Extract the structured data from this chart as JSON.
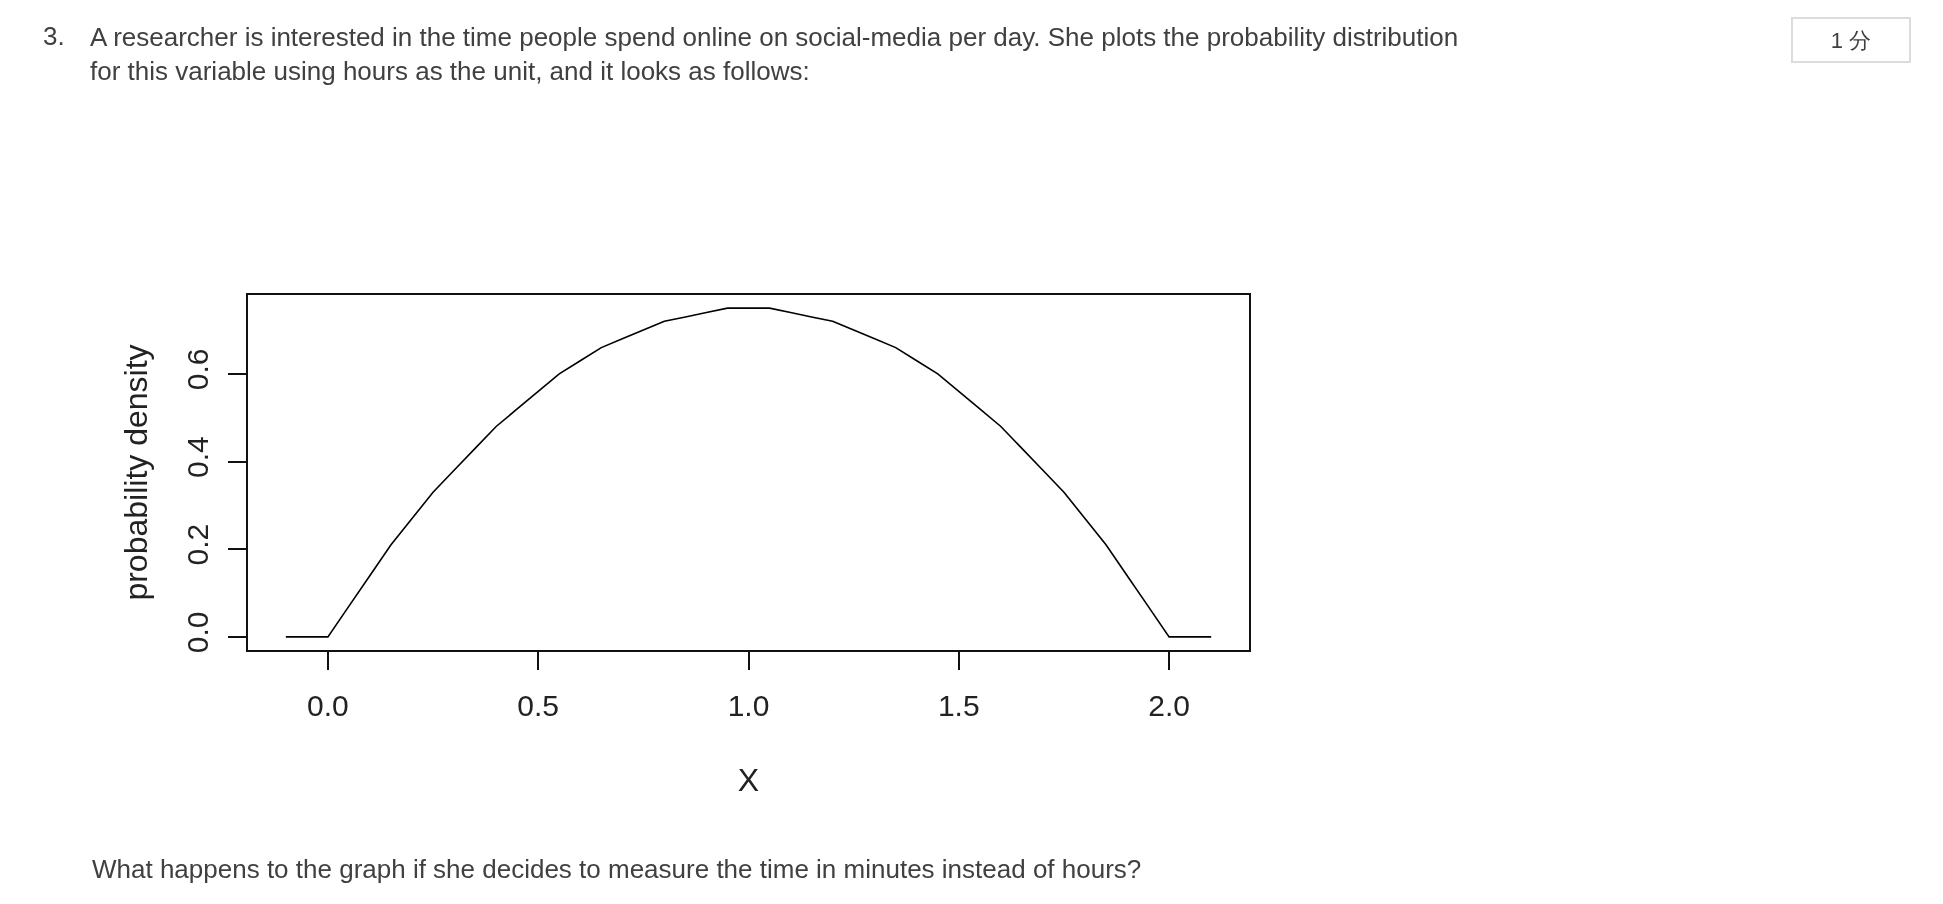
{
  "chart_data": {
    "type": "line",
    "title": "A researcher is interested in the time people spend online on social-media per day. She plots the probability distribution for this variable using hours as the unit, and it looks as follows:",
    "xlabel": "X",
    "ylabel": "probability density",
    "annotations": [
      "3.",
      "1 分",
      "What happens to the graph if she decides to measure the time in minutes instead of hours?"
    ],
    "x": [
      -0.1,
      0,
      0.05,
      0.1,
      0.15,
      0.2,
      0.25,
      0.3,
      0.35,
      0.4,
      0.45,
      0.5,
      0.55,
      0.6,
      0.65,
      0.7,
      0.75,
      0.8,
      0.85,
      0.9,
      0.95,
      1.0,
      1.05,
      1.1,
      1.15,
      1.2,
      1.25,
      1.3,
      1.35,
      1.4,
      1.45,
      1.5,
      1.55,
      1.6,
      1.65,
      1.7,
      1.75,
      1.8,
      1.85,
      1.9,
      1.95,
      2.0,
      2.1
    ],
    "series": [
      {
        "color": "#000000",
        "values": [
          0,
          0,
          0.07,
          0.14,
          0.21,
          0.27,
          0.33,
          0.38,
          0.43,
          0.48,
          0.52,
          0.56,
          0.6,
          0.63,
          0.66,
          0.68,
          0.7,
          0.72,
          0.73,
          0.74,
          0.75,
          0.75,
          0.75,
          0.74,
          0.73,
          0.72,
          0.7,
          0.68,
          0.66,
          0.63,
          0.6,
          0.56,
          0.52,
          0.48,
          0.43,
          0.38,
          0.33,
          0.27,
          0.21,
          0.14,
          0.07,
          0,
          0
        ]
      }
    ],
    "xlim": [
      -0.19,
      2.19
    ],
    "ylim": [
      -0.03,
      0.78
    ],
    "xticks": [
      {
        "value": 0,
        "label": "0.0"
      },
      0.5,
      {
        "value": 1,
        "label": "1.0"
      },
      1.5,
      {
        "value": 2,
        "label": "2.0"
      }
    ],
    "yticks": [
      {
        "value": 0,
        "label": "0.0"
      },
      0.2,
      0.4,
      0.6
    ],
    "line_style": "solid"
  }
}
